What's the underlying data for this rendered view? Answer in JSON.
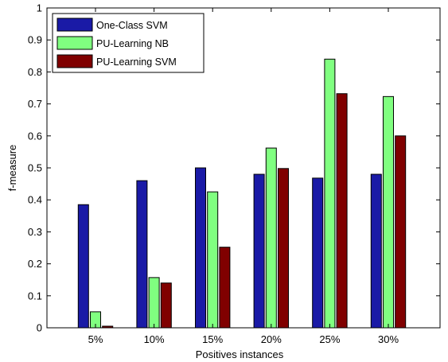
{
  "chart_data": {
    "type": "bar",
    "title": "",
    "xlabel": "Positives instances",
    "ylabel": "f-measure",
    "ylim": [
      0,
      1
    ],
    "yticks": [
      0,
      0.1,
      0.2,
      0.3,
      0.4,
      0.5,
      0.6,
      0.7,
      0.8,
      0.9,
      1
    ],
    "ytick_labels": [
      "0",
      "0.1",
      "0.2",
      "0.3",
      "0.4",
      "0.5",
      "0.6",
      "0.7",
      "0.8",
      "0.9",
      "1"
    ],
    "categories": [
      "5%",
      "10%",
      "15%",
      "20%",
      "25%",
      "30%"
    ],
    "legend_position": "top-left",
    "grid": false,
    "series": [
      {
        "name": "One-Class SVM",
        "color": "#1a1aa6",
        "values": [
          0.385,
          0.46,
          0.5,
          0.48,
          0.468,
          0.48
        ]
      },
      {
        "name": "PU-Learning NB",
        "color": "#80ff80",
        "values": [
          0.05,
          0.157,
          0.425,
          0.562,
          0.84,
          0.723
        ]
      },
      {
        "name": "PU-Learning SVM",
        "color": "#800000",
        "values": [
          0.005,
          0.14,
          0.252,
          0.498,
          0.732,
          0.6
        ]
      }
    ]
  }
}
